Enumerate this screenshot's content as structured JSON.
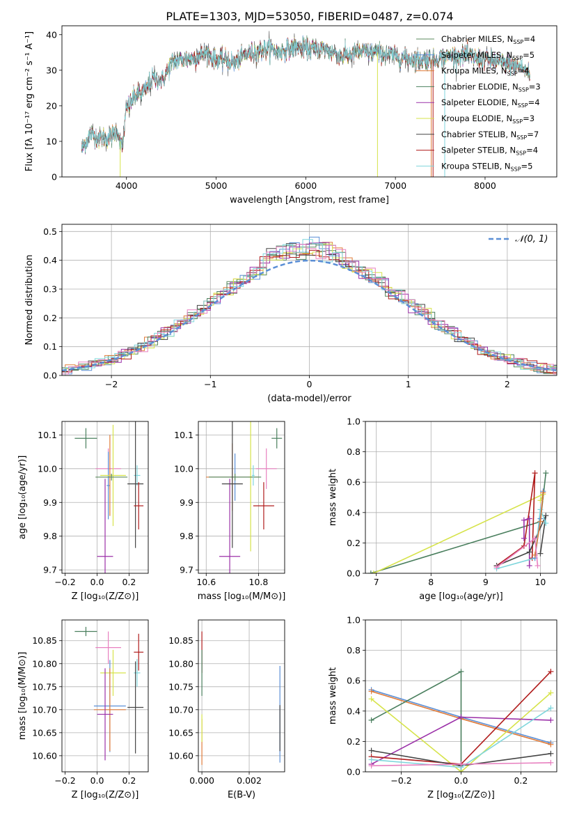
{
  "title": "PLATE=1303, MJD=53050, FIBERID=0487, z=0.074",
  "colors": {
    "Chabrier MILES": "#5b8a5e",
    "Salpeter MILES": "#5b8fd6",
    "Kroupa MILES": "#e07b39",
    "Chabrier ELODIE": "#4a7f5e",
    "Salpeter ELODIE": "#9b30a8",
    "Kroupa ELODIE": "#d6e34a",
    "Chabrier STELIB": "#444444",
    "Salpeter STELIB": "#b01c1c",
    "Kroupa STELIB": "#7fd6dc",
    "pink": "#e880c0"
  },
  "chart_data": [
    {
      "id": "spectrum",
      "type": "line",
      "title": "PLATE=1303, MJD=53050, FIBERID=0487, z=0.074",
      "xlabel": "wavelength [Angstrom, rest frame]",
      "ylabel": "Flux [fλ 10⁻¹⁷ erg cm⁻² s⁻¹ A⁻¹]",
      "xlim": [
        3280,
        8800
      ],
      "ylim": [
        0,
        42.5
      ],
      "xticks": [
        4000,
        5000,
        6000,
        7000,
        8000
      ],
      "yticks": [
        0,
        10,
        20,
        30,
        40
      ],
      "grid": false,
      "legend_position": "top-right",
      "legend": [
        {
          "label": "Chabrier MILES, N",
          "sub": "SSP",
          "suffix": "=4"
        },
        {
          "label": "Salpeter MILES, N",
          "sub": "SSP",
          "suffix": "=5"
        },
        {
          "label": "Kroupa MILES, N",
          "sub": "SSP",
          "suffix": "=4"
        },
        {
          "label": "Chabrier ELODIE, N",
          "sub": "SSP",
          "suffix": "=3"
        },
        {
          "label": "Salpeter ELODIE, N",
          "sub": "SSP",
          "suffix": "=4"
        },
        {
          "label": "Kroupa ELODIE, N",
          "sub": "SSP",
          "suffix": "=3"
        },
        {
          "label": "Chabrier STELIB, N",
          "sub": "SSP",
          "suffix": "=7"
        },
        {
          "label": "Salpeter STELIB, N",
          "sub": "SSP",
          "suffix": "=4"
        },
        {
          "label": "Kroupa STELIB, N",
          "sub": "SSP",
          "suffix": "=5"
        }
      ],
      "continuum": [
        [
          3500,
          8
        ],
        [
          3600,
          12
        ],
        [
          3700,
          11
        ],
        [
          3800,
          11
        ],
        [
          3900,
          13
        ],
        [
          3950,
          8
        ],
        [
          4000,
          19
        ],
        [
          4100,
          23
        ],
        [
          4200,
          24
        ],
        [
          4300,
          28
        ],
        [
          4400,
          27
        ],
        [
          4500,
          32
        ],
        [
          4600,
          33
        ],
        [
          4700,
          33
        ],
        [
          4800,
          34
        ],
        [
          4900,
          35
        ],
        [
          5000,
          33
        ],
        [
          5100,
          33
        ],
        [
          5200,
          32
        ],
        [
          5300,
          34
        ],
        [
          5400,
          35
        ],
        [
          5500,
          35.5
        ],
        [
          5600,
          36
        ],
        [
          5700,
          35
        ],
        [
          5800,
          36
        ],
        [
          5900,
          36.5
        ],
        [
          6000,
          36
        ],
        [
          6200,
          36
        ],
        [
          6400,
          34
        ],
        [
          6600,
          35
        ],
        [
          6800,
          35
        ],
        [
          7000,
          34
        ],
        [
          7200,
          33
        ],
        [
          7400,
          33
        ],
        [
          7600,
          34
        ],
        [
          7800,
          34
        ],
        [
          8000,
          33
        ],
        [
          8200,
          32
        ],
        [
          8400,
          31
        ],
        [
          8500,
          29
        ]
      ]
    },
    {
      "id": "residuals",
      "type": "histogram",
      "xlabel": "(data-model)/error",
      "ylabel": "Normed distribution",
      "xlim": [
        -2.5,
        2.5
      ],
      "ylim": [
        0,
        0.525
      ],
      "xticks": [
        -2,
        -1,
        0,
        1,
        2
      ],
      "yticks": [
        0.0,
        0.1,
        0.2,
        0.3,
        0.4,
        0.5
      ],
      "grid": true,
      "legend_position": "top-right",
      "reference_label": "𝒩(0, 1)",
      "bin_width": 0.1
    },
    {
      "id": "age_vs_Z",
      "type": "errorbar",
      "xlabel": "Z [log₁₀(Z/Z⊙)]",
      "ylabel": "age  [log₁₀(age/yr)]",
      "xlim": [
        -0.22,
        0.32
      ],
      "ylim": [
        9.69,
        10.14
      ],
      "xticks": [
        -0.2,
        0.0,
        0.2
      ],
      "yticks": [
        9.7,
        9.8,
        9.9,
        10.0,
        10.1
      ],
      "points": [
        {
          "x": -0.07,
          "y": 10.09,
          "xerr": 0.07,
          "yerr": 0.03,
          "c": "Chabrier ELODIE"
        },
        {
          "x": 0.07,
          "y": 10.0,
          "xerr": 0.08,
          "yerr": 0.06,
          "c": "pink"
        },
        {
          "x": 0.07,
          "y": 9.95,
          "xerr": 0.01,
          "yerr": 0.1,
          "c": "Salpeter MILES"
        },
        {
          "x": 0.08,
          "y": 9.98,
          "xerr": 0.01,
          "yerr": 0.12,
          "c": "Kroupa MILES"
        },
        {
          "x": 0.1,
          "y": 9.98,
          "xerr": 0.08,
          "yerr": 0.15,
          "c": "Kroupa ELODIE"
        },
        {
          "x": 0.09,
          "y": 9.975,
          "xerr": 0.1,
          "yerr": 0.01,
          "c": "Chabrier MILES"
        },
        {
          "x": 0.05,
          "y": 9.74,
          "xerr": 0.05,
          "yerr": 0.23,
          "c": "Salpeter ELODIE"
        },
        {
          "x": 0.25,
          "y": 9.98,
          "xerr": 0.02,
          "yerr": 0.03,
          "c": "Kroupa STELIB"
        },
        {
          "x": 0.24,
          "y": 9.955,
          "xerr": 0.05,
          "yerr": 0.19,
          "c": "Chabrier STELIB"
        },
        {
          "x": 0.26,
          "y": 9.89,
          "xerr": 0.03,
          "yerr": 0.07,
          "c": "Salpeter STELIB"
        }
      ]
    },
    {
      "id": "age_vs_mass",
      "type": "errorbar",
      "xlabel": "mass [log₁₀(M/M⊙)]",
      "ylabel": "",
      "xlim": [
        10.57,
        10.9
      ],
      "ylim": [
        9.69,
        10.14
      ],
      "xticks": [
        10.6,
        10.8
      ],
      "yticks": [
        9.7,
        9.8,
        9.9,
        10.0,
        10.1
      ],
      "points": [
        {
          "x": 10.87,
          "y": 10.09,
          "xerr": 0.02,
          "yerr": 0.03,
          "c": "Chabrier ELODIE"
        },
        {
          "x": 10.83,
          "y": 10.0,
          "xerr": 0.04,
          "yerr": 0.06,
          "c": "pink"
        },
        {
          "x": 10.71,
          "y": 9.975,
          "xerr": 0.1,
          "yerr": 0.07,
          "c": "Salpeter MILES"
        },
        {
          "x": 10.7,
          "y": 9.975,
          "xerr": 0.1,
          "yerr": 0.1,
          "c": "Kroupa MILES"
        },
        {
          "x": 10.77,
          "y": 9.975,
          "xerr": 0.01,
          "yerr": 0.22,
          "c": "Kroupa ELODIE"
        },
        {
          "x": 10.71,
          "y": 9.975,
          "xerr": 0.1,
          "yerr": 0.01,
          "c": "Chabrier MILES"
        },
        {
          "x": 10.69,
          "y": 9.74,
          "xerr": 0.04,
          "yerr": 0.23,
          "c": "Salpeter ELODIE"
        },
        {
          "x": 10.78,
          "y": 9.98,
          "xerr": 0.005,
          "yerr": 0.03,
          "c": "Kroupa STELIB"
        },
        {
          "x": 10.7,
          "y": 9.955,
          "xerr": 0.04,
          "yerr": 0.19,
          "c": "Chabrier STELIB"
        },
        {
          "x": 10.82,
          "y": 9.89,
          "xerr": 0.04,
          "yerr": 0.07,
          "c": "Salpeter STELIB"
        }
      ]
    },
    {
      "id": "weight_vs_age",
      "type": "line",
      "xlabel": "age  [log₁₀(age/yr)]",
      "ylabel": "mass weight",
      "xlim": [
        6.8,
        10.3
      ],
      "ylim": [
        0,
        1
      ],
      "xticks": [
        7,
        8,
        9,
        10
      ],
      "yticks": [
        0.0,
        0.2,
        0.4,
        0.6,
        0.8,
        1.0
      ],
      "grid": true,
      "series": [
        {
          "c": "Chabrier ELODIE",
          "pts": [
            [
              6.9,
              0.0
            ],
            [
              10.0,
              0.34
            ],
            [
              10.1,
              0.66
            ]
          ]
        },
        {
          "c": "Kroupa ELODIE",
          "pts": [
            [
              6.95,
              0.0
            ],
            [
              10.05,
              0.52
            ],
            [
              10.0,
              0.48
            ]
          ]
        },
        {
          "c": "Salpeter STELIB",
          "pts": [
            [
              9.2,
              0.05
            ],
            [
              9.7,
              0.18
            ],
            [
              9.9,
              0.66
            ],
            [
              9.85,
              0.1
            ]
          ]
        },
        {
          "c": "Salpeter ELODIE",
          "pts": [
            [
              9.7,
              0.23
            ],
            [
              9.7,
              0.35
            ],
            [
              9.8,
              0.36
            ],
            [
              9.8,
              0.05
            ]
          ]
        },
        {
          "c": "Chabrier STELIB",
          "pts": [
            [
              9.2,
              0.05
            ],
            [
              9.8,
              0.14
            ],
            [
              10.1,
              0.38
            ],
            [
              10.0,
              0.13
            ]
          ]
        },
        {
          "c": "Kroupa STELIB",
          "pts": [
            [
              9.2,
              0.03
            ],
            [
              9.9,
              0.1
            ],
            [
              10.0,
              0.42
            ],
            [
              10.1,
              0.33
            ]
          ]
        },
        {
          "c": "Salpeter MILES",
          "pts": [
            [
              9.9,
              0.1
            ],
            [
              10.0,
              0.36
            ],
            [
              10.05,
              0.54
            ]
          ]
        },
        {
          "c": "Kroupa MILES",
          "pts": [
            [
              9.9,
              0.12
            ],
            [
              10.0,
              0.34
            ],
            [
              10.05,
              0.53
            ]
          ]
        },
        {
          "c": "pink",
          "pts": [
            [
              9.2,
              0.04
            ],
            [
              9.9,
              0.23
            ],
            [
              9.95,
              0.05
            ]
          ]
        }
      ]
    },
    {
      "id": "mass_vs_Z",
      "type": "errorbar",
      "xlabel": "Z [log₁₀(Z/Z⊙)]",
      "ylabel": "mass [log₁₀(M/M⊙)]",
      "xlim": [
        -0.22,
        0.32
      ],
      "ylim": [
        10.565,
        10.895
      ],
      "xticks": [
        -0.2,
        0.0,
        0.2
      ],
      "yticks": [
        10.6,
        10.65,
        10.7,
        10.75,
        10.8,
        10.85
      ],
      "points": [
        {
          "x": -0.07,
          "y": 10.87,
          "xerr": 0.07,
          "yerr": 0.01,
          "c": "Chabrier ELODIE"
        },
        {
          "x": 0.07,
          "y": 10.835,
          "xerr": 0.08,
          "yerr": 0.035,
          "c": "pink"
        },
        {
          "x": 0.1,
          "y": 10.78,
          "xerr": 0.08,
          "yerr": 0.05,
          "c": "Kroupa ELODIE"
        },
        {
          "x": 0.08,
          "y": 10.708,
          "xerr": 0.1,
          "yerr": 0.1,
          "c": "Salpeter MILES"
        },
        {
          "x": 0.08,
          "y": 10.7,
          "xerr": 0.1,
          "yerr": 0.09,
          "c": "Kroupa MILES"
        },
        {
          "x": 0.05,
          "y": 10.69,
          "xerr": 0.05,
          "yerr": 0.1,
          "c": "Salpeter ELODIE"
        },
        {
          "x": 0.25,
          "y": 10.78,
          "xerr": 0.02,
          "yerr": 0.03,
          "c": "Kroupa STELIB"
        },
        {
          "x": 0.24,
          "y": 10.705,
          "xerr": 0.05,
          "yerr": 0.1,
          "c": "Chabrier STELIB"
        },
        {
          "x": 0.26,
          "y": 10.825,
          "xerr": 0.03,
          "yerr": 0.04,
          "c": "Salpeter STELIB"
        }
      ]
    },
    {
      "id": "mass_vs_EBV",
      "type": "errorbar",
      "xlabel": "E(B-V)",
      "ylabel": "",
      "xlim": [
        -0.00015,
        0.0035
      ],
      "ylim": [
        10.565,
        10.895
      ],
      "xticks": [
        0.0,
        0.002
      ],
      "yticks": [
        10.6,
        10.65,
        10.7,
        10.75,
        10.8,
        10.85
      ],
      "points": [
        {
          "x": 0.0,
          "y": 10.825,
          "xerr": 0,
          "yerr": 0.045,
          "c": "Salpeter STELIB"
        },
        {
          "x": 0.0,
          "y": 10.78,
          "xerr": 0,
          "yerr": 0.05,
          "c": "Chabrier ELODIE"
        },
        {
          "x": 0.0,
          "y": 10.63,
          "xerr": 0,
          "yerr": 0.05,
          "c": "Kroupa MILES"
        },
        {
          "x": 0.0,
          "y": 10.66,
          "xerr": 0,
          "yerr": 0.03,
          "c": "Kroupa ELODIE"
        },
        {
          "x": 0.0033,
          "y": 10.69,
          "xerr": 0,
          "yerr": 0.105,
          "c": "Salpeter MILES"
        },
        {
          "x": 0.0033,
          "y": 10.66,
          "xerr": 0,
          "yerr": 0.05,
          "c": "Chabrier STELIB"
        }
      ]
    },
    {
      "id": "weight_vs_Z",
      "type": "line",
      "xlabel": "Z [log₁₀(Z/Z⊙)]",
      "ylabel": "mass weight",
      "xlim": [
        -0.32,
        0.32
      ],
      "ylim": [
        0,
        1
      ],
      "xticks": [
        -0.2,
        0.0,
        0.2
      ],
      "yticks": [
        0.0,
        0.2,
        0.4,
        0.6,
        0.8,
        1.0
      ],
      "grid": true,
      "series": [
        {
          "c": "Salpeter MILES",
          "pts": [
            [
              -0.3,
              0.54
            ],
            [
              0.0,
              0.36
            ],
            [
              0.3,
              0.19
            ]
          ]
        },
        {
          "c": "Kroupa MILES",
          "pts": [
            [
              -0.3,
              0.53
            ],
            [
              0.0,
              0.35
            ],
            [
              0.3,
              0.18
            ]
          ]
        },
        {
          "c": "Chabrier ELODIE",
          "pts": [
            [
              -0.3,
              0.34
            ],
            [
              0.0,
              0.66
            ],
            [
              0.0,
              0.0
            ]
          ]
        },
        {
          "c": "Kroupa ELODIE",
          "pts": [
            [
              -0.3,
              0.48
            ],
            [
              0.0,
              0.0
            ],
            [
              0.3,
              0.52
            ]
          ]
        },
        {
          "c": "Salpeter ELODIE",
          "pts": [
            [
              -0.3,
              0.05
            ],
            [
              0.0,
              0.36
            ],
            [
              0.3,
              0.34
            ]
          ]
        },
        {
          "c": "Salpeter STELIB",
          "pts": [
            [
              -0.3,
              0.1
            ],
            [
              0.0,
              0.05
            ],
            [
              0.3,
              0.66
            ]
          ]
        },
        {
          "c": "Chabrier STELIB",
          "pts": [
            [
              -0.3,
              0.14
            ],
            [
              0.0,
              0.04
            ],
            [
              0.3,
              0.12
            ]
          ]
        },
        {
          "c": "Kroupa STELIB",
          "pts": [
            [
              -0.3,
              0.08
            ],
            [
              0.0,
              0.03
            ],
            [
              0.3,
              0.42
            ]
          ]
        },
        {
          "c": "pink",
          "pts": [
            [
              -0.3,
              0.04
            ],
            [
              0.0,
              0.05
            ],
            [
              0.3,
              0.06
            ]
          ]
        }
      ]
    }
  ]
}
